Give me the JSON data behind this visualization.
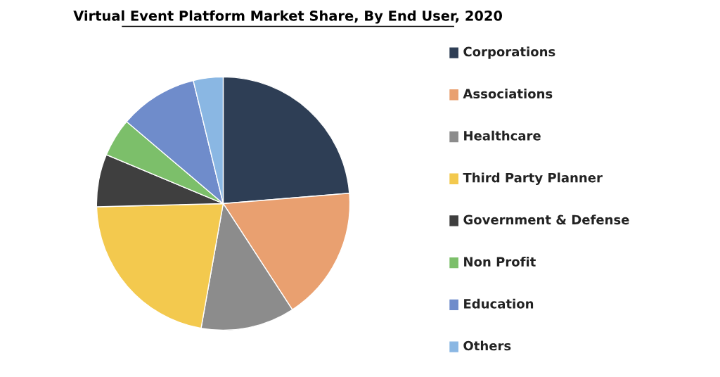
{
  "chart_data": {
    "type": "pie",
    "title": "Virtual Event Platform Market Share, By End User, 2020",
    "categories": [
      "Corporations",
      "Associations",
      "Healthcare",
      "Third Party Planner",
      "Government & Defense",
      "Non Profit",
      "Education",
      "Others"
    ],
    "values": [
      23.7,
      17.1,
      12.0,
      21.8,
      6.7,
      4.9,
      10.0,
      3.8
    ],
    "colors": [
      "#2e3e55",
      "#e9a070",
      "#8c8c8c",
      "#f3c94e",
      "#3f3f3f",
      "#7cbf6a",
      "#6f8ccb",
      "#8ab7e3"
    ],
    "legend": "right"
  }
}
